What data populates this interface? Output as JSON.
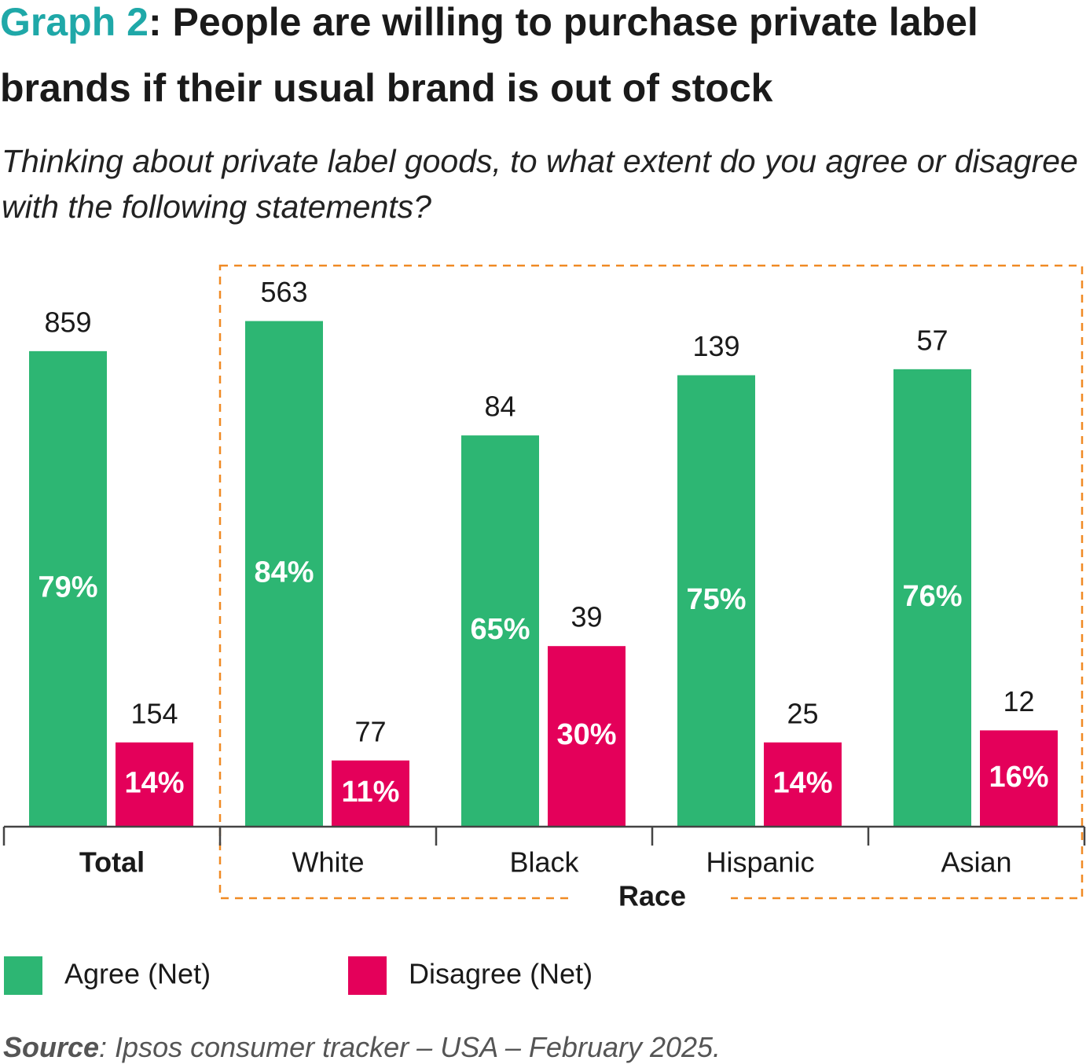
{
  "chart_data": {
    "type": "bar",
    "title_prefix": "Graph 2",
    "title": ": People are willing to purchase private label brands if their usual brand is out of stock",
    "subtitle": "Thinking about private label goods, to what extent do you agree or disagree with the following statements?",
    "categories": [
      "Total",
      "White",
      "Black",
      "Hispanic",
      "Asian"
    ],
    "group_label": "Race",
    "series": [
      {
        "name": "Agree (Net)",
        "color": "#2db673",
        "values": [
          79,
          84,
          65,
          75,
          76
        ],
        "value_labels": [
          "79%",
          "84%",
          "65%",
          "75%",
          "76%"
        ],
        "counts": [
          859,
          563,
          84,
          139,
          57
        ]
      },
      {
        "name": "Disagree (Net)",
        "color": "#e4005a",
        "values": [
          14,
          11,
          30,
          14,
          16
        ],
        "value_labels": [
          "14%",
          "11%",
          "30%",
          "14%",
          "16%"
        ],
        "counts": [
          154,
          77,
          39,
          25,
          12
        ]
      }
    ],
    "source_label": "Source",
    "source": ": Ipsos consumer tracker – USA – February 2025."
  }
}
